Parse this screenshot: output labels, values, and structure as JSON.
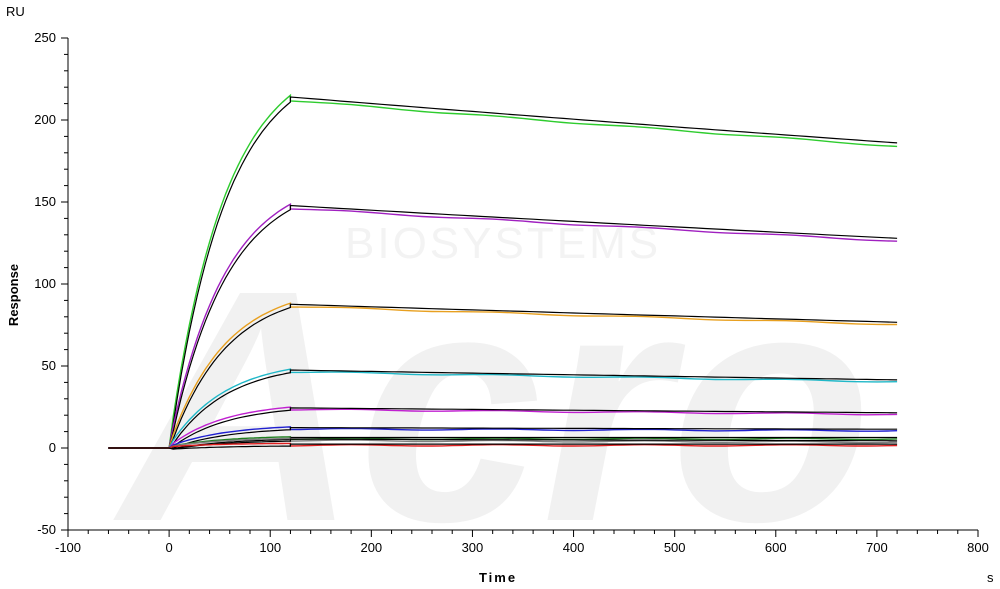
{
  "chart_data": {
    "type": "line",
    "title": "",
    "xlabel": "Time",
    "ylabel": "Response",
    "x_unit": "s",
    "y_unit": "RU",
    "xlim": [
      -100,
      800
    ],
    "ylim": [
      -50,
      250
    ],
    "x_ticks": [
      -100,
      0,
      100,
      200,
      300,
      400,
      500,
      600,
      700,
      800
    ],
    "y_ticks": [
      -50,
      0,
      50,
      100,
      150,
      200,
      250
    ],
    "grid": false,
    "legend": "none",
    "association_end": 120,
    "x_start": -60,
    "x_end": 720,
    "watermark": {
      "logo": "Acro",
      "text": "BIOSYSTEMS"
    },
    "series": [
      {
        "color": "#2ecc2e",
        "plateau": 213,
        "end": 185
      },
      {
        "color": "#a020c0",
        "plateau": 147,
        "end": 127
      },
      {
        "color": "#e8a020",
        "plateau": 87,
        "end": 76
      },
      {
        "color": "#20b8c8",
        "plateau": 47,
        "end": 41
      },
      {
        "color": "#c020d0",
        "plateau": 24,
        "end": 21
      },
      {
        "color": "#2020d0",
        "plateau": 12,
        "end": 11
      },
      {
        "color": "#208020",
        "plateau": 6,
        "end": 6
      },
      {
        "color": "#808080",
        "plateau": 5,
        "end": 4
      },
      {
        "color": "#e02020",
        "plateau": 2,
        "end": 2
      }
    ]
  }
}
